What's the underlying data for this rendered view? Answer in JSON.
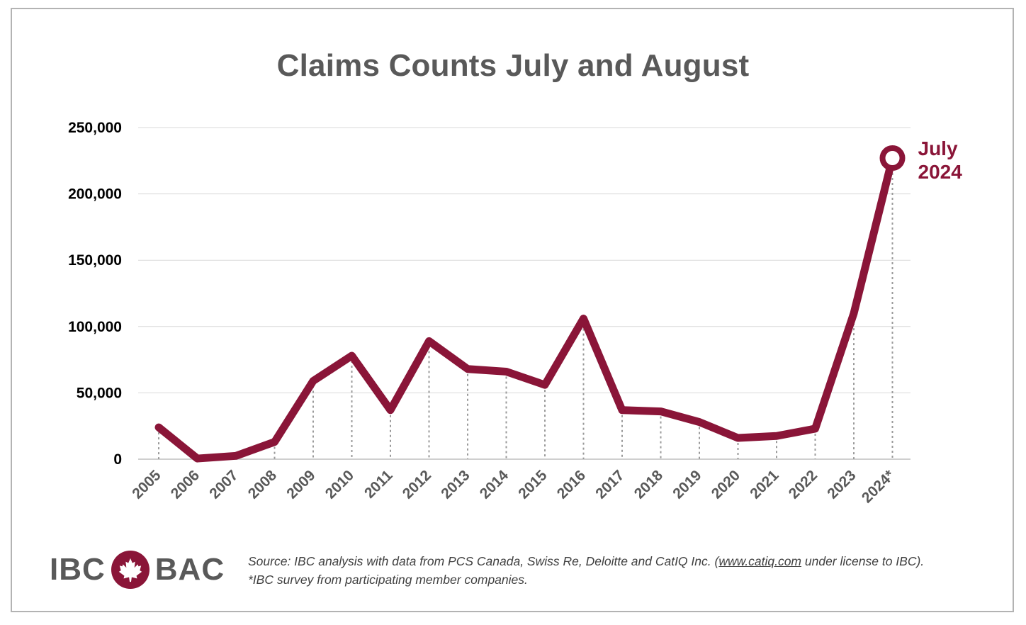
{
  "chart_data": {
    "type": "line",
    "title": "Claims Counts July and August",
    "xlabel": "",
    "ylabel": "",
    "categories": [
      "2005",
      "2006",
      "2007",
      "2008",
      "2009",
      "2010",
      "2011",
      "2012",
      "2013",
      "2014",
      "2015",
      "2016",
      "2017",
      "2018",
      "2019",
      "2020",
      "2021",
      "2022",
      "2023",
      "2024*"
    ],
    "series": [
      {
        "name": "Claims Counts July and August",
        "color": "#8a1538",
        "values": [
          24000,
          500,
          2500,
          13000,
          59000,
          78000,
          37000,
          89000,
          68000,
          66000,
          56000,
          106000,
          37000,
          36000,
          28000,
          16000,
          17500,
          23000,
          110000,
          227000
        ]
      }
    ],
    "ylim": [
      0,
      250000
    ],
    "yticks": [
      0,
      50000,
      100000,
      150000,
      200000,
      250000
    ],
    "ytick_labels": [
      "0",
      "50,000",
      "100,000",
      "150,000",
      "200,000",
      "250,000"
    ],
    "grid": true,
    "drop_lines": true,
    "annotation": {
      "category": "2024*",
      "lines": [
        "July",
        "2024"
      ]
    }
  },
  "logo": {
    "left_text": "IBC",
    "right_text": "BAC",
    "mark": "maple-leaf-icon",
    "brand_color": "#8a1538"
  },
  "footer": {
    "source_prefix": "Source: IBC analysis with data from PCS Canada, Swiss Re, Deloitte and CatIQ Inc. (",
    "source_link": "www.catiq.com",
    "source_suffix": " under license to IBC).",
    "note": "*IBC survey from participating member companies."
  }
}
